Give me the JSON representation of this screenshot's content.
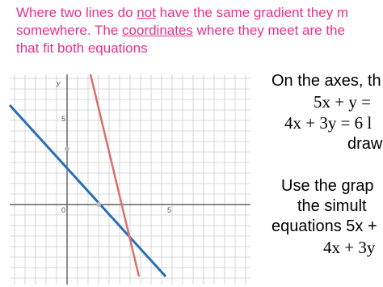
{
  "header": {
    "line1": [
      "Where two lines do ",
      "not",
      " have the same gradient they m"
    ],
    "line2": [
      "somewhere. The ",
      "coordinates",
      " where they meet are the "
    ],
    "line3": "that fit both equations"
  },
  "graph": {
    "y_axis_label": "y",
    "y_tick": "5",
    "origin": "0",
    "x_tick": "5"
  },
  "instructions": {
    "line1": "On the axes, th",
    "eq1": "5x + y =",
    "eq2": "4x + 3y = 6 l",
    "line4": "draw",
    "line5": "Use the grap",
    "line6": "the simult",
    "line7": "equations 5x +",
    "line8": "4x + 3y"
  }
}
